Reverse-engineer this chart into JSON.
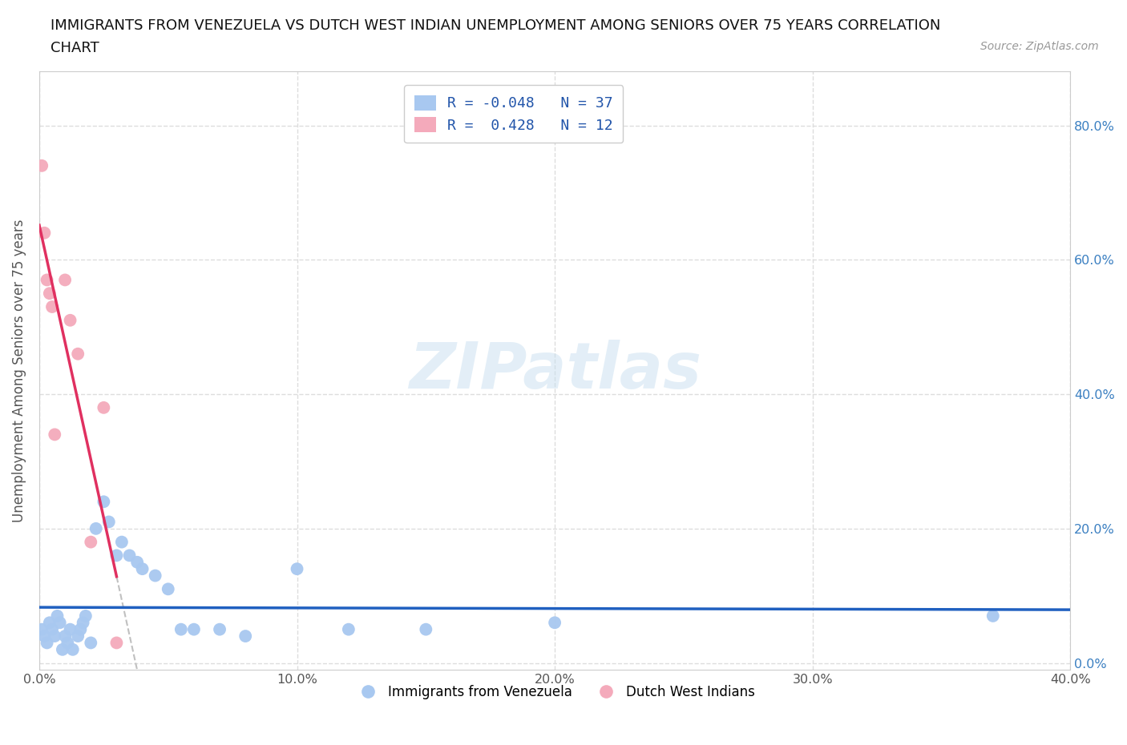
{
  "title_line1": "IMMIGRANTS FROM VENEZUELA VS DUTCH WEST INDIAN UNEMPLOYMENT AMONG SENIORS OVER 75 YEARS CORRELATION",
  "title_line2": "CHART",
  "source_text": "Source: ZipAtlas.com",
  "ylabel": "Unemployment Among Seniors over 75 years",
  "watermark": "ZIPatlas",
  "xlim": [
    0.0,
    0.4
  ],
  "ylim": [
    -0.01,
    0.88
  ],
  "xticks": [
    0.0,
    0.1,
    0.2,
    0.3,
    0.4
  ],
  "yticks": [
    0.0,
    0.2,
    0.4,
    0.6,
    0.8
  ],
  "xtick_labels": [
    "0.0%",
    "10.0%",
    "20.0%",
    "30.0%",
    "40.0%"
  ],
  "ytick_labels_right": [
    "0.0%",
    "20.0%",
    "40.0%",
    "60.0%",
    "80.0%"
  ],
  "blue_color": "#A8C8F0",
  "pink_color": "#F4AABB",
  "blue_line_color": "#2060C0",
  "pink_line_color": "#E03060",
  "gray_dash_color": "#C0C0C0",
  "legend_R_blue": "R = -0.048",
  "legend_N_blue": "N = 37",
  "legend_R_pink": "R =  0.428",
  "legend_N_pink": "N = 12",
  "legend_label_blue": "Immigrants from Venezuela",
  "legend_label_pink": "Dutch West Indians",
  "blue_scatter_x": [
    0.001,
    0.002,
    0.003,
    0.004,
    0.005,
    0.006,
    0.007,
    0.008,
    0.009,
    0.01,
    0.011,
    0.012,
    0.013,
    0.015,
    0.016,
    0.017,
    0.018,
    0.02,
    0.022,
    0.025,
    0.027,
    0.03,
    0.032,
    0.035,
    0.038,
    0.04,
    0.045,
    0.05,
    0.055,
    0.06,
    0.07,
    0.08,
    0.1,
    0.12,
    0.15,
    0.2,
    0.37
  ],
  "blue_scatter_y": [
    0.05,
    0.04,
    0.03,
    0.06,
    0.05,
    0.04,
    0.07,
    0.06,
    0.02,
    0.04,
    0.03,
    0.05,
    0.02,
    0.04,
    0.05,
    0.06,
    0.07,
    0.03,
    0.2,
    0.24,
    0.21,
    0.16,
    0.18,
    0.16,
    0.15,
    0.14,
    0.13,
    0.11,
    0.05,
    0.05,
    0.05,
    0.04,
    0.14,
    0.05,
    0.05,
    0.06,
    0.07
  ],
  "pink_scatter_x": [
    0.001,
    0.002,
    0.003,
    0.004,
    0.005,
    0.006,
    0.01,
    0.012,
    0.015,
    0.02,
    0.025,
    0.03
  ],
  "pink_scatter_y": [
    0.74,
    0.64,
    0.57,
    0.55,
    0.53,
    0.34,
    0.57,
    0.51,
    0.46,
    0.18,
    0.38,
    0.03
  ],
  "background_color": "#FFFFFF",
  "grid_color": "#DDDDDD",
  "title_fontsize": 13,
  "axis_label_fontsize": 12,
  "tick_fontsize": 11.5
}
